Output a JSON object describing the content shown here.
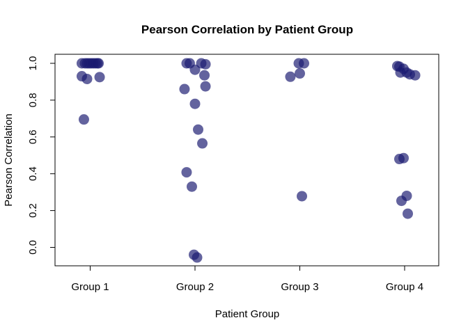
{
  "chart_data": {
    "type": "scatter",
    "title": "Pearson Correlation by Patient Group",
    "xlabel": "Patient Group",
    "ylabel": "Pearson Correlation",
    "categories": [
      "Group 1",
      "Group 2",
      "Group 3",
      "Group 4"
    ],
    "ylim": [
      -0.1,
      1.04
    ],
    "y_ticks": [
      "0.0",
      "0.2",
      "0.4",
      "0.6",
      "0.8",
      "1.0"
    ],
    "grid": false,
    "point_color": "#191970",
    "point_opacity": 0.68,
    "points": [
      {
        "group": "Group 1",
        "x": 0.92,
        "y": 1.0
      },
      {
        "group": "Group 1",
        "x": 0.95,
        "y": 1.0
      },
      {
        "group": "Group 1",
        "x": 0.97,
        "y": 1.0
      },
      {
        "group": "Group 1",
        "x": 0.99,
        "y": 1.0
      },
      {
        "group": "Group 1",
        "x": 1.01,
        "y": 1.0
      },
      {
        "group": "Group 1",
        "x": 1.03,
        "y": 1.0
      },
      {
        "group": "Group 1",
        "x": 1.05,
        "y": 1.0
      },
      {
        "group": "Group 1",
        "x": 1.07,
        "y": 1.0
      },
      {
        "group": "Group 1",
        "x": 1.08,
        "y": 1.0
      },
      {
        "group": "Group 1",
        "x": 0.92,
        "y": 0.93
      },
      {
        "group": "Group 1",
        "x": 0.97,
        "y": 0.915
      },
      {
        "group": "Group 1",
        "x": 1.09,
        "y": 0.925
      },
      {
        "group": "Group 1",
        "x": 0.94,
        "y": 0.695
      },
      {
        "group": "Group 2",
        "x": 1.92,
        "y": 1.0
      },
      {
        "group": "Group 2",
        "x": 1.95,
        "y": 1.0
      },
      {
        "group": "Group 2",
        "x": 2.06,
        "y": 1.0
      },
      {
        "group": "Group 2",
        "x": 2.1,
        "y": 0.995
      },
      {
        "group": "Group 2",
        "x": 2.0,
        "y": 0.965
      },
      {
        "group": "Group 2",
        "x": 2.09,
        "y": 0.935
      },
      {
        "group": "Group 2",
        "x": 2.1,
        "y": 0.875
      },
      {
        "group": "Group 2",
        "x": 1.9,
        "y": 0.86
      },
      {
        "group": "Group 2",
        "x": 2.0,
        "y": 0.78
      },
      {
        "group": "Group 2",
        "x": 2.03,
        "y": 0.64
      },
      {
        "group": "Group 2",
        "x": 2.07,
        "y": 0.565
      },
      {
        "group": "Group 2",
        "x": 1.92,
        "y": 0.408
      },
      {
        "group": "Group 2",
        "x": 1.97,
        "y": 0.33
      },
      {
        "group": "Group 2",
        "x": 1.99,
        "y": -0.04
      },
      {
        "group": "Group 2",
        "x": 2.02,
        "y": -0.055
      },
      {
        "group": "Group 3",
        "x": 2.99,
        "y": 1.0
      },
      {
        "group": "Group 3",
        "x": 3.04,
        "y": 1.0
      },
      {
        "group": "Group 3",
        "x": 3.0,
        "y": 0.945
      },
      {
        "group": "Group 3",
        "x": 2.91,
        "y": 0.927
      },
      {
        "group": "Group 3",
        "x": 3.02,
        "y": 0.278
      },
      {
        "group": "Group 4",
        "x": 3.93,
        "y": 0.985
      },
      {
        "group": "Group 4",
        "x": 3.95,
        "y": 0.982
      },
      {
        "group": "Group 4",
        "x": 3.99,
        "y": 0.97
      },
      {
        "group": "Group 4",
        "x": 3.96,
        "y": 0.95
      },
      {
        "group": "Group 4",
        "x": 4.02,
        "y": 0.95
      },
      {
        "group": "Group 4",
        "x": 4.05,
        "y": 0.94
      },
      {
        "group": "Group 4",
        "x": 4.1,
        "y": 0.935
      },
      {
        "group": "Group 4",
        "x": 3.95,
        "y": 0.48
      },
      {
        "group": "Group 4",
        "x": 3.99,
        "y": 0.485
      },
      {
        "group": "Group 4",
        "x": 4.02,
        "y": 0.28
      },
      {
        "group": "Group 4",
        "x": 3.97,
        "y": 0.253
      },
      {
        "group": "Group 4",
        "x": 4.03,
        "y": 0.183
      }
    ]
  }
}
